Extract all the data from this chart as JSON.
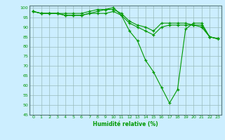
{
  "xlabel": "Humidité relative (%)",
  "background_color": "#cceeff",
  "grid_color": "#99bbbb",
  "line_color": "#009900",
  "xlim": [
    -0.5,
    23.5
  ],
  "ylim": [
    45,
    101
  ],
  "yticks": [
    45,
    50,
    55,
    60,
    65,
    70,
    75,
    80,
    85,
    90,
    95,
    100
  ],
  "xticks": [
    0,
    1,
    2,
    3,
    4,
    5,
    6,
    7,
    8,
    9,
    10,
    11,
    12,
    13,
    14,
    15,
    16,
    17,
    18,
    19,
    20,
    21,
    22,
    23
  ],
  "series": [
    [
      98,
      97,
      97,
      97,
      97,
      97,
      97,
      98,
      99,
      99,
      99,
      97,
      93,
      91,
      90,
      88,
      92,
      92,
      92,
      92,
      91,
      91,
      85,
      84
    ],
    [
      98,
      97,
      97,
      97,
      96,
      96,
      96,
      97,
      97,
      97,
      98,
      96,
      92,
      90,
      88,
      86,
      90,
      91,
      91,
      91,
      91,
      90,
      85,
      84
    ],
    [
      98,
      97,
      97,
      97,
      96,
      96,
      96,
      97,
      98,
      99,
      100,
      96,
      88,
      83,
      73,
      67,
      59,
      51,
      58,
      89,
      92,
      92,
      85,
      84
    ]
  ]
}
